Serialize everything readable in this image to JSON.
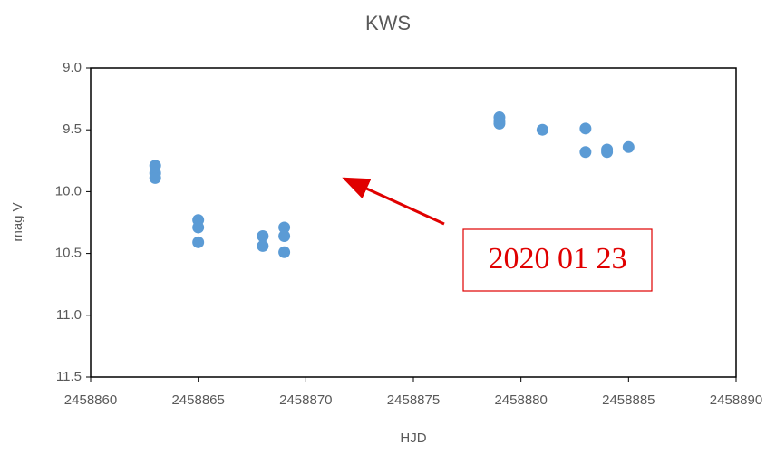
{
  "chart_data": {
    "type": "scatter",
    "title": "KWS",
    "x_label": "HJD",
    "y_label": "mag V",
    "annotation": "2020 01 23",
    "series": [
      {
        "name": "KWS",
        "color": "#5b9bd5",
        "x": [
          2458863,
          2458863,
          2458863,
          2458865,
          2458865,
          2458865,
          2458868,
          2458868,
          2458869,
          2458869,
          2458869,
          2458879,
          2458879,
          2458879,
          2458881,
          2458883,
          2458883,
          2458884,
          2458884,
          2458885
        ],
        "values": [
          9.79,
          9.85,
          9.89,
          10.23,
          10.29,
          10.41,
          10.36,
          10.44,
          10.29,
          10.36,
          10.49,
          9.4,
          9.43,
          9.45,
          9.5,
          9.49,
          9.68,
          9.66,
          9.68,
          9.64
        ]
      }
    ],
    "xlim": [
      2458860,
      2458890
    ],
    "xticks": [
      2458860,
      2458865,
      2458870,
      2458875,
      2458880,
      2458885,
      2458890
    ],
    "ylim": [
      9,
      11.5
    ],
    "y_reversed": true,
    "yticks": [
      {
        "value": 9,
        "label": "9.0"
      },
      9.5,
      {
        "value": 10,
        "label": "10.0"
      },
      10.5,
      {
        "value": 11,
        "label": "11.0"
      },
      11.5
    ]
  }
}
